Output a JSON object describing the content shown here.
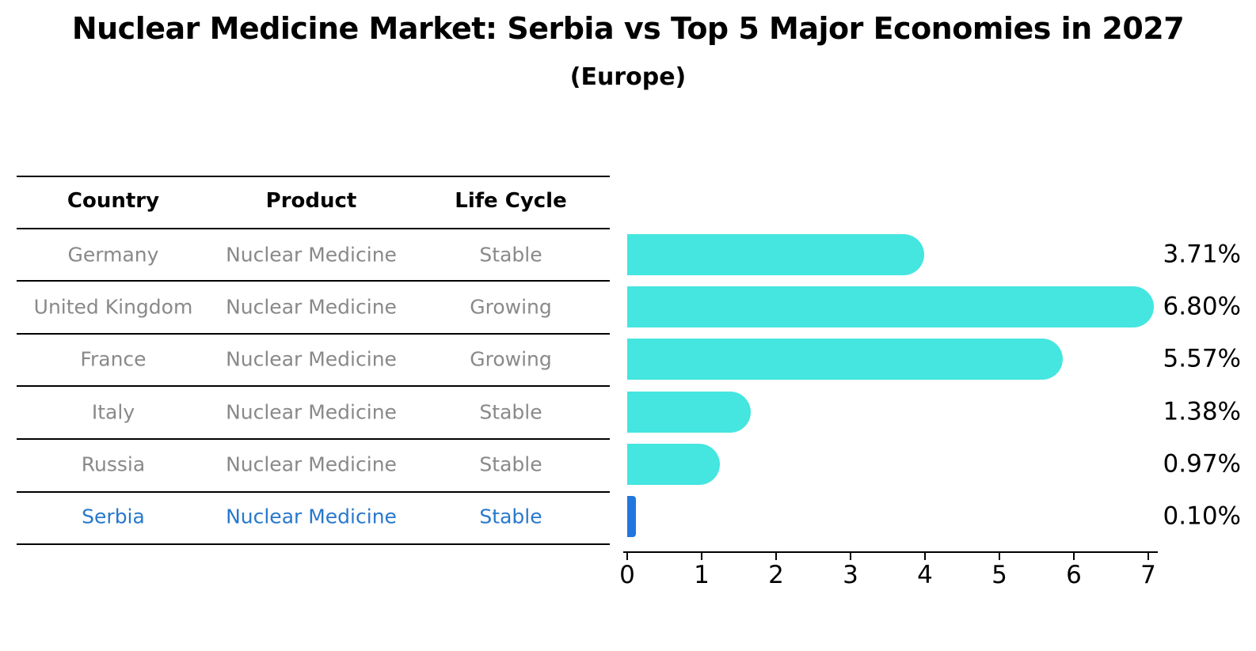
{
  "header": {
    "title": "Nuclear Medicine Market: Serbia vs Top 5 Major Economies in 2027",
    "subtitle": "(Europe)"
  },
  "table": {
    "columns": [
      "Country",
      "Product",
      "Life Cycle"
    ],
    "rows": [
      {
        "country": "Germany",
        "product": "Nuclear Medicine",
        "life_cycle": "Stable",
        "highlight": false
      },
      {
        "country": "United Kingdom",
        "product": "Nuclear Medicine",
        "life_cycle": "Growing",
        "highlight": false
      },
      {
        "country": "France",
        "product": "Nuclear Medicine",
        "life_cycle": "Growing",
        "highlight": false
      },
      {
        "country": "Italy",
        "product": "Nuclear Medicine",
        "life_cycle": "Stable",
        "highlight": false
      },
      {
        "country": "Russia",
        "product": "Nuclear Medicine",
        "life_cycle": "Stable",
        "highlight": false
      },
      {
        "country": "Serbia",
        "product": "Nuclear Medicine",
        "life_cycle": "Stable",
        "highlight": true
      }
    ]
  },
  "chart_data": {
    "type": "bar",
    "orientation": "horizontal",
    "title": "Nuclear Medicine Market: Serbia vs Top 5 Major Economies in 2027 (Europe)",
    "categories": [
      "Germany",
      "United Kingdom",
      "France",
      "Italy",
      "Russia",
      "Serbia"
    ],
    "values": [
      3.71,
      6.8,
      5.57,
      1.38,
      0.97,
      0.1
    ],
    "value_labels": [
      "3.71%",
      "6.80%",
      "5.57%",
      "1.38%",
      "0.97%",
      "0.10%"
    ],
    "xlabel": "",
    "ylabel": "",
    "xlim": [
      0,
      7
    ],
    "x_ticks": [
      "0",
      "1",
      "2",
      "3",
      "4",
      "5",
      "6",
      "7"
    ],
    "grid": false,
    "legend": false,
    "highlight_index": 5
  },
  "colors": {
    "bar_cyan": "#45E5E0",
    "serbia_blue": "#2277DF",
    "serbia_text": "#2878CC",
    "row_text_gray": "#898989",
    "rule_black": "#000000"
  }
}
